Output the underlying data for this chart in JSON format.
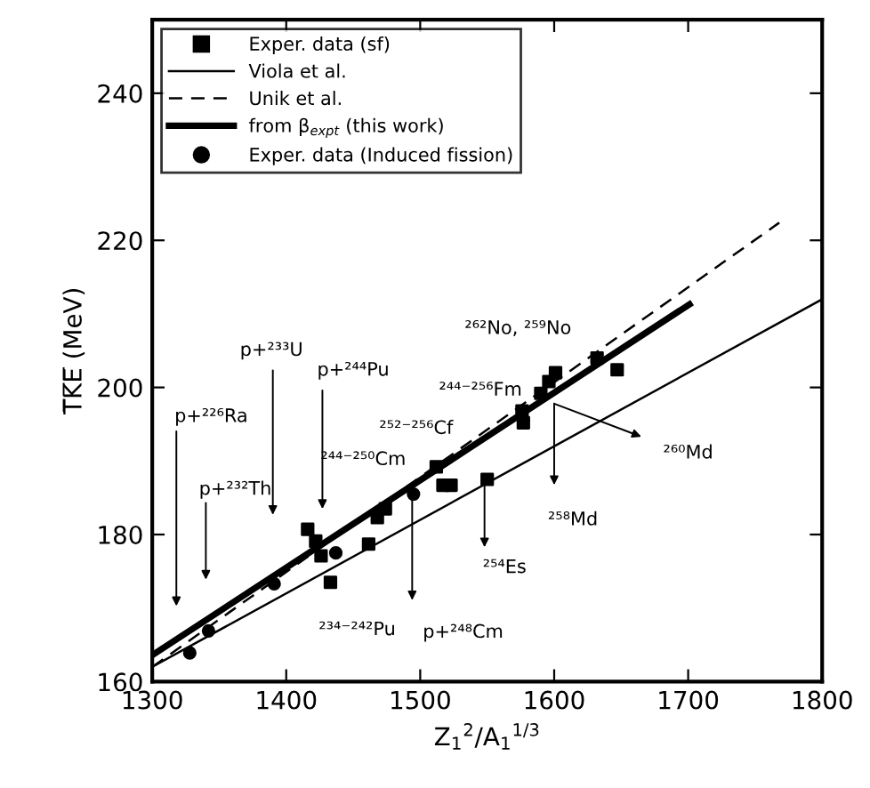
{
  "chart_data": {
    "type": "scatter",
    "xlabel": "Z$_{1}$$^{2}$/A$_{1}$$^{1/3}$",
    "ylabel": "T̅K̅E̅ (MeV)",
    "xlim": [
      1300,
      1800
    ],
    "xticks": [
      1300,
      1400,
      1500,
      1600,
      1700,
      1800
    ],
    "ylim": [
      160,
      250
    ],
    "yticks": [
      160,
      180,
      200,
      220,
      240
    ],
    "grid": false,
    "legend": "top left",
    "series": [
      {
        "name": "Exper. data (sf)",
        "marker": "square",
        "color": "#000000",
        "x": [
          1416,
          1422,
          1426,
          1433,
          1461.5,
          1468,
          1474,
          1512,
          1517,
          1523,
          1550,
          1576,
          1577,
          1590,
          1596,
          1601,
          1632,
          1647
        ],
        "values": [
          180.7,
          179.1,
          177.1,
          173.5,
          178.7,
          182.3,
          183.5,
          189.2,
          186.7,
          186.7,
          187.5,
          196.8,
          195.2,
          199.2,
          200.8,
          202,
          204,
          202.4
        ]
      },
      {
        "name": "Viola et al.",
        "type": "line",
        "line_style": "solid",
        "color": "#000000",
        "x": [
          1300,
          1800
        ],
        "values": [
          162,
          212
        ]
      },
      {
        "name": "Unik et al.",
        "type": "line",
        "line_style": "dashed",
        "color": "#000000",
        "x": [
          1300,
          1768
        ],
        "values": [
          162,
          222.4
        ]
      },
      {
        "name": "from β$_{expt}$ (this work)",
        "type": "line",
        "line_style": "solid",
        "color": "#000000",
        "x": [
          1300,
          1701
        ],
        "values": [
          163.6,
          211.3
        ]
      },
      {
        "name": "Exper. data (Induced fission)",
        "marker": "circle",
        "color": "#000000",
        "x": [
          1328,
          1342,
          1391,
          1437,
          1495
        ],
        "values": [
          163.9,
          166.9,
          173.3,
          177.5,
          185.5
        ]
      }
    ],
    "annotations": [
      "p+²²⁶Ra",
      "p+²³²Th",
      "p+²³³U",
      "p+²⁴⁴Pu",
      "²⁴⁴⁻²⁵⁰Cm",
      "²⁵²⁻²⁵⁶Cf",
      "²⁴⁴⁻²⁵⁶Fm",
      "²⁶²No, ²⁵⁹No",
      "²⁶⁰Md",
      "²⁵⁸Md",
      "²⁵⁴Es",
      "²³⁴⁻²⁴²Pu",
      "p+²⁴⁸Cm"
    ]
  }
}
